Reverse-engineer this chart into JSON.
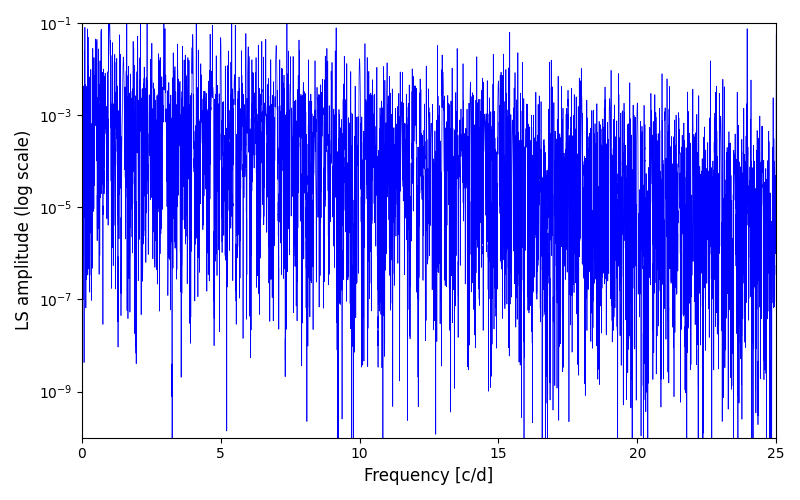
{
  "title": "",
  "xlabel": "Frequency [c/d]",
  "ylabel": "LS amplitude (log scale)",
  "xlim": [
    0,
    25
  ],
  "ylim": [
    1e-10,
    0.1
  ],
  "line_color": "#0000ff",
  "line_width": 0.5,
  "figsize": [
    8.0,
    5.0
  ],
  "dpi": 100,
  "yticks": [
    1e-09,
    1e-07,
    1e-05,
    0.001,
    0.1
  ],
  "seed": 12345,
  "n_points": 20000
}
